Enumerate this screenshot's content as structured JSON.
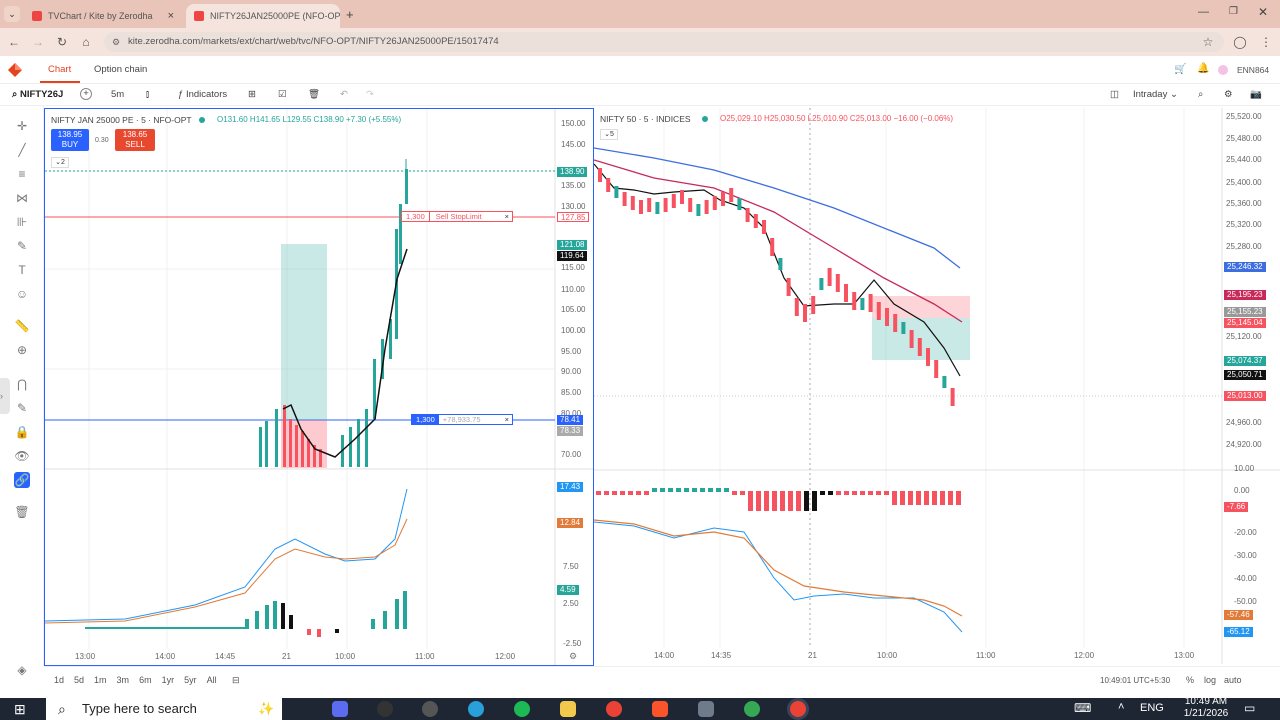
{
  "browser": {
    "tabs": [
      {
        "label": "TVChart / Kite by Zerodha"
      },
      {
        "label": "NIFTY26JAN25000PE (NFO-OPT"
      }
    ],
    "url": "kite.zerodha.com/markets/ext/chart/web/tvc/NFO-OPT/NIFTY26JAN25000PE/15017474"
  },
  "kite": {
    "nav": [
      "Chart",
      "Option chain"
    ],
    "user": "ENN864"
  },
  "toolbar": {
    "symbol": "NIFTY26J",
    "interval": "5m",
    "indicators": "Indicators",
    "layout": "Intraday"
  },
  "left_chart": {
    "title": "NIFTY JAN 25000 PE · 5 · NFO-OPT",
    "ohlc": "O131.60 H141.65 L129.55 C138.90 +7.30 (+5.55%)",
    "buy_price": "138.95",
    "buy_label": "BUY",
    "spread": "0.30",
    "sell_price": "138.65",
    "sell_label": "SELL",
    "collapse": "2",
    "price_ticks": [
      "150.00",
      "145.00",
      "135.00",
      "130.00",
      "115.00",
      "110.00",
      "105.00",
      "100.00",
      "95.00",
      "90.00",
      "85.00",
      "80.00",
      "70.00"
    ],
    "volume_ticks": [
      "7.50",
      "2.50",
      "-2.50"
    ],
    "time_ticks": [
      "13:00",
      "14:00",
      "14:45",
      "21",
      "10:00",
      "11:00",
      "12:00"
    ],
    "order_qty": "1,300",
    "order_label": "Sell StopLimit",
    "position_qty": "1,300",
    "position_pnl": "+78,933.75",
    "tags": {
      "last": "138.90",
      "stop": "127.85",
      "green": "121.08",
      "black": "119.64",
      "pos": "78.41",
      "pos2": "78.33",
      "osc1": "17.43",
      "osc2": "12.84",
      "hist": "4.59"
    },
    "tag_colors": {
      "last": "#26a69a",
      "stop": "#f7525f",
      "green": "#26a69a",
      "black": "#111111",
      "pos": "#2962ff",
      "osc1": "#2196f3",
      "osc2": "#e07b39",
      "hist": "#26a69a"
    }
  },
  "right_chart": {
    "title": "NIFTY 50 · 5 · INDICES",
    "ohlc": "O25,029.10 H25,030.50 L25,010.90 C25,013.00 −16.00 (−0.06%)",
    "collapse": "5",
    "price_ticks": [
      "25,520.00",
      "25,480.00",
      "25,440.00",
      "25,400.00",
      "25,360.00",
      "25,320.00",
      "25,280.00",
      "25,120.00",
      "24,960.00",
      "24,920.00"
    ],
    "osc_ticks": [
      "10.00",
      "0.00",
      "-20.00",
      "-30.00",
      "-40.00",
      "-50.00"
    ],
    "time_ticks": [
      "14:00",
      "14:35",
      "21",
      "10:00",
      "11:00",
      "12:00",
      "13:00"
    ],
    "tags": {
      "blue": "25,246.32",
      "red1": "25,195.23",
      "grey": "25,155.23",
      "red2": "25,145.04",
      "green": "25,074.37",
      "black": "25,050.71",
      "last": "25,013.00",
      "hist": "-7.66",
      "o1": "-57.46",
      "o2": "-65.12"
    }
  },
  "bottom": {
    "ranges": [
      "1d",
      "5d",
      "1m",
      "3m",
      "6m",
      "1yr",
      "5yr",
      "All"
    ],
    "clock": "10:49:01 UTC+5:30",
    "opts": [
      "%",
      "log",
      "auto"
    ]
  },
  "taskbar": {
    "search": "Type here to search",
    "lang": "ENG",
    "time": "10:49 AM",
    "date": "1/21/2026"
  }
}
